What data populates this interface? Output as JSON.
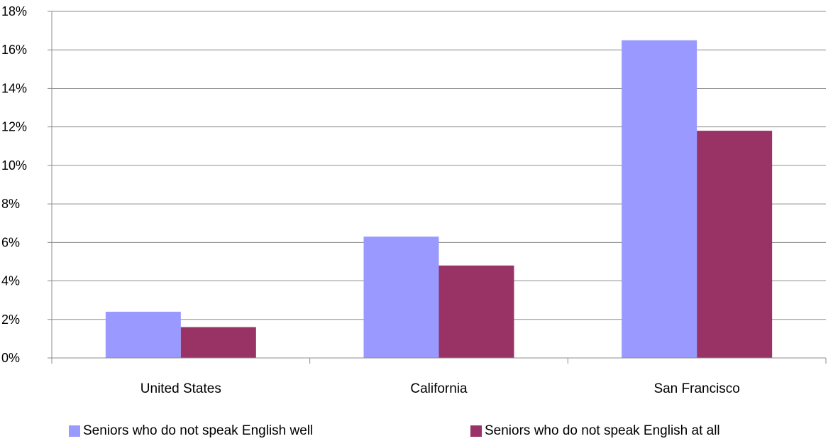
{
  "chart_data": {
    "type": "bar",
    "categories": [
      "United States",
      "California",
      "San Francisco"
    ],
    "series": [
      {
        "name": "Seniors who do not speak English well",
        "color": "#9999ff",
        "values": [
          2.4,
          6.3,
          16.5
        ]
      },
      {
        "name": "Seniors who do not speak English at all",
        "color": "#993366",
        "values": [
          1.6,
          4.8,
          11.8
        ]
      }
    ],
    "yticks": [
      "0%",
      "2%",
      "4%",
      "6%",
      "8%",
      "10%",
      "12%",
      "14%",
      "16%",
      "18%"
    ],
    "ylim": [
      0,
      18
    ],
    "grid": true,
    "legend_position": "bottom"
  }
}
